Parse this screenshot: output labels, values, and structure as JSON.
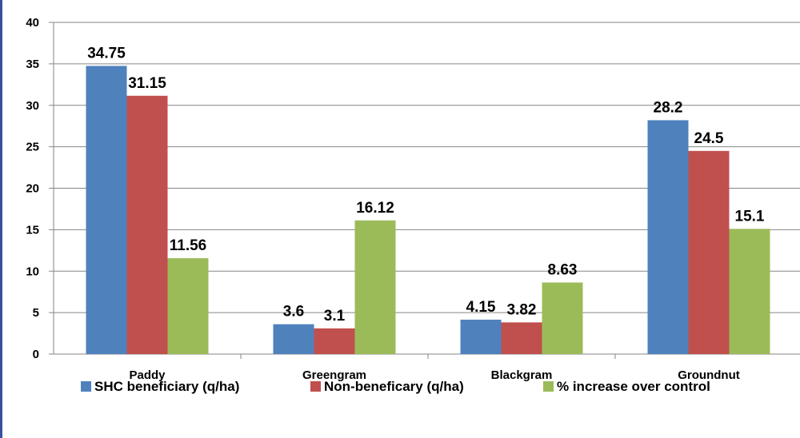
{
  "chart_data": {
    "type": "bar",
    "title": "",
    "xlabel": "",
    "ylabel": "",
    "categories": [
      "Paddy",
      "Greengram",
      "Blackgram",
      "Groundnut"
    ],
    "series": [
      {
        "name": "SHC beneficiary (q/ha)",
        "values": [
          34.75,
          3.6,
          4.15,
          28.2
        ],
        "color": "#4f81bd"
      },
      {
        "name": "Non-beneficary (q/ha)",
        "values": [
          31.15,
          3.1,
          3.82,
          24.5
        ],
        "color": "#c0504d"
      },
      {
        "name": "% increase over control",
        "values": [
          11.56,
          16.12,
          8.63,
          15.1
        ],
        "color": "#9bbb59"
      }
    ],
    "ylim": [
      0,
      40
    ],
    "yticks": [
      0,
      5,
      10,
      15,
      20,
      25,
      30,
      35,
      40
    ],
    "grid": true,
    "legend_position": "bottom",
    "data_labels": true
  }
}
